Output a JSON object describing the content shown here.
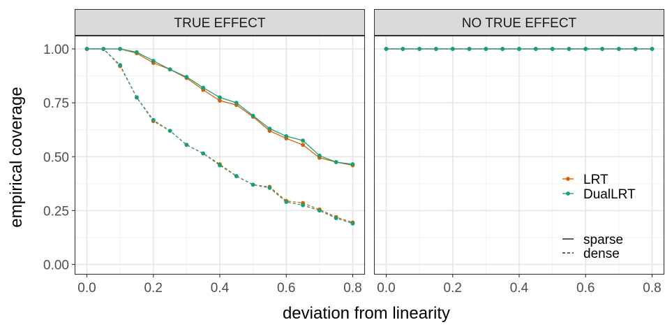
{
  "chart_data": {
    "type": "line",
    "xlabel": "deviation from linearity",
    "ylabel": "empirical coverage",
    "xlim": [
      0,
      0.8
    ],
    "ylim": [
      0,
      1
    ],
    "x_ticks": [
      "0.0",
      "0.2",
      "0.4",
      "0.6",
      "0.8"
    ],
    "y_ticks": [
      "0.00",
      "0.25",
      "0.50",
      "0.75",
      "1.00"
    ],
    "grid": true,
    "legend_position": "right, inside second panel",
    "method_legend": [
      {
        "name": "LRT",
        "color": "#D95F02"
      },
      {
        "name": "DualLRT",
        "color": "#1B9E77"
      }
    ],
    "linetype_legend": [
      {
        "name": "sparse",
        "dash": "solid"
      },
      {
        "name": "dense",
        "dash": "dashed"
      }
    ],
    "x": [
      0,
      0.05,
      0.1,
      0.15,
      0.2,
      0.25,
      0.3,
      0.35,
      0.4,
      0.45,
      0.5,
      0.55,
      0.6,
      0.65,
      0.7,
      0.75,
      0.8
    ],
    "panels": [
      {
        "title": "TRUE EFFECT",
        "series": [
          {
            "method": "LRT",
            "linetype": "sparse",
            "values": [
              1.0,
              1.0,
              1.0,
              0.98,
              0.935,
              0.905,
              0.865,
              0.81,
              0.76,
              0.74,
              0.685,
              0.62,
              0.585,
              0.555,
              0.495,
              0.475,
              0.46
            ]
          },
          {
            "method": "DualLRT",
            "linetype": "sparse",
            "values": [
              1.0,
              1.0,
              1.0,
              0.985,
              0.945,
              0.905,
              0.87,
              0.82,
              0.775,
              0.75,
              0.69,
              0.63,
              0.595,
              0.575,
              0.505,
              0.475,
              0.465
            ]
          },
          {
            "method": "LRT",
            "linetype": "dense",
            "values": [
              1.0,
              1.0,
              0.92,
              0.775,
              0.665,
              0.62,
              0.555,
              0.515,
              0.465,
              0.41,
              0.37,
              0.36,
              0.295,
              0.285,
              0.255,
              0.22,
              0.195
            ]
          },
          {
            "method": "DualLRT",
            "linetype": "dense",
            "values": [
              1.0,
              1.0,
              0.925,
              0.775,
              0.67,
              0.62,
              0.555,
              0.515,
              0.46,
              0.41,
              0.37,
              0.355,
              0.29,
              0.275,
              0.25,
              0.215,
              0.19
            ]
          }
        ]
      },
      {
        "title": "NO TRUE EFFECT",
        "series": [
          {
            "method": "LRT",
            "linetype": "sparse",
            "values": [
              1,
              1,
              1,
              1,
              1,
              1,
              1,
              1,
              1,
              1,
              1,
              1,
              1,
              1,
              1,
              1,
              1
            ]
          },
          {
            "method": "LRT",
            "linetype": "dense",
            "values": [
              1,
              1,
              1,
              1,
              1,
              1,
              1,
              1,
              1,
              1,
              1,
              1,
              1,
              1,
              1,
              1,
              1
            ]
          },
          {
            "method": "DualLRT",
            "linetype": "sparse",
            "values": [
              1,
              1,
              1,
              1,
              1,
              1,
              1,
              1,
              1,
              1,
              1,
              1,
              1,
              1,
              1,
              1,
              1
            ]
          },
          {
            "method": "DualLRT",
            "linetype": "dense",
            "values": [
              1,
              1,
              1,
              1,
              1,
              1,
              1,
              1,
              1,
              1,
              1,
              1,
              1,
              1,
              1,
              1,
              1
            ]
          }
        ]
      }
    ]
  }
}
